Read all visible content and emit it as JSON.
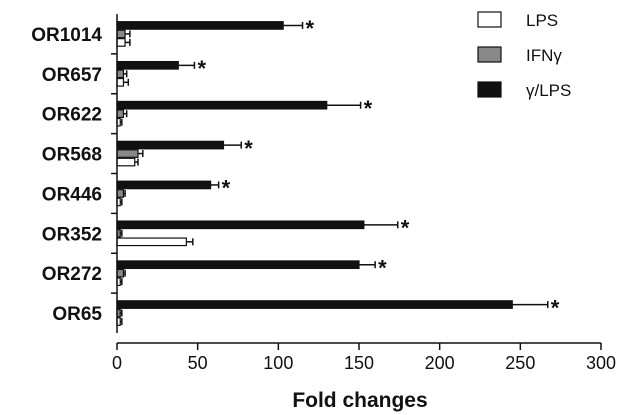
{
  "chart_data": {
    "type": "bar",
    "orientation": "horizontal",
    "categories": [
      "OR1014",
      "OR657",
      "OR622",
      "OR568",
      "OR446",
      "OR352",
      "OR272",
      "OR65"
    ],
    "series": [
      {
        "name": "LPS",
        "color": "#ffffff",
        "values": [
          5,
          4,
          2,
          11,
          2,
          43,
          2,
          2
        ],
        "errors": [
          3,
          3,
          1,
          2,
          1,
          4,
          1,
          1
        ]
      },
      {
        "name": "IFNγ",
        "color": "#888888",
        "values": [
          5,
          4,
          4,
          13,
          4,
          2,
          4,
          2
        ],
        "errors": [
          3,
          2,
          2,
          3,
          1,
          1,
          1,
          1
        ]
      },
      {
        "name": "γ/LPS",
        "color": "#111111",
        "values": [
          103,
          38,
          130,
          66,
          58,
          153,
          150,
          245
        ],
        "errors": [
          12,
          10,
          21,
          11,
          5,
          21,
          10,
          22
        ]
      }
    ],
    "significance": [
      "*",
      "*",
      "*",
      "*",
      "*",
      "*",
      "*",
      "*"
    ],
    "xlabel": "Fold changes",
    "ylabel": "",
    "xlim": [
      0,
      300
    ],
    "xticks": [
      "0",
      "50",
      "100",
      "150",
      "200",
      "250",
      "300"
    ],
    "grid": false,
    "legend_position": "top-right"
  }
}
